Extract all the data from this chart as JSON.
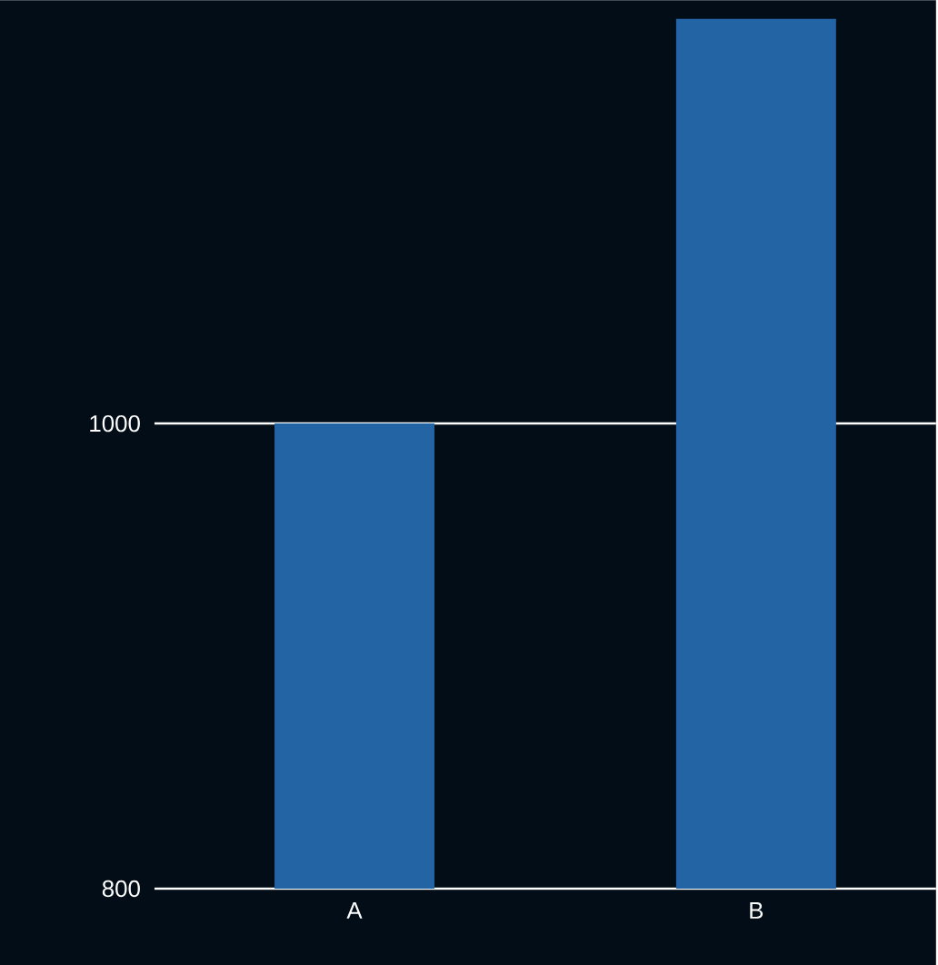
{
  "chart_data": {
    "type": "bar",
    "categories": [
      "A",
      "B"
    ],
    "values": [
      1000,
      1174
    ],
    "color": "#2264a4",
    "ylim": [
      800,
      1182
    ],
    "yticks": [
      800,
      1000
    ],
    "grid": "y"
  }
}
